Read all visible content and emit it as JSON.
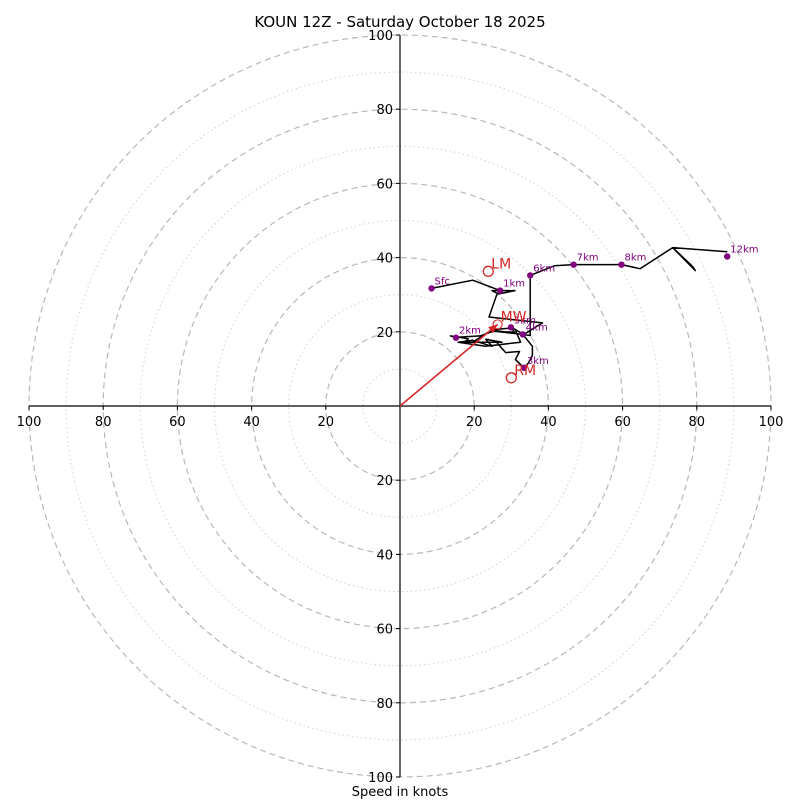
{
  "chart_data": {
    "type": "hodograph",
    "title": "KOUN 12Z - Saturday October 18 2025",
    "xlabel": "Speed in knots",
    "ring_max": 100,
    "major_ring_step": 20,
    "minor_ring_step": 10,
    "tick_labels": [
      "20",
      "40",
      "60",
      "80",
      "100"
    ],
    "trace_color": "#000000",
    "height_color": "#800080",
    "motion_color": "#d62728",
    "trace": [
      [
        8.5,
        31.7
      ],
      [
        19.6,
        33.9
      ],
      [
        27,
        31.1
      ],
      [
        31,
        31.1
      ],
      [
        26.5,
        30.2
      ],
      [
        24.8,
        31.1
      ],
      [
        27,
        31.1
      ],
      [
        26,
        29.8
      ],
      [
        24,
        24
      ],
      [
        38.4,
        22.4
      ],
      [
        33.4,
        19.3
      ],
      [
        29.9,
        21.2
      ],
      [
        30.8,
        19.9
      ],
      [
        24.2,
        20.2
      ],
      [
        19.6,
        17.2
      ],
      [
        26,
        17.2
      ],
      [
        28.5,
        14.4
      ],
      [
        32.2,
        14.7
      ],
      [
        31.1,
        12.5
      ],
      [
        33.4,
        10.3
      ],
      [
        34.6,
        11.6
      ],
      [
        35.7,
        13.6
      ],
      [
        35.7,
        16.1
      ],
      [
        33.1,
        19.3
      ],
      [
        25.3,
        20.2
      ],
      [
        21.6,
        18.9
      ],
      [
        14.8,
        18.5
      ],
      [
        13.6,
        18.9
      ],
      [
        18.4,
        18.1
      ],
      [
        17.4,
        17.2
      ],
      [
        27.5,
        17.2
      ],
      [
        23.1,
        18
      ],
      [
        24.8,
        16.1
      ],
      [
        19.6,
        17.7
      ],
      [
        15.7,
        17.2
      ],
      [
        23.1,
        16.1
      ],
      [
        32.5,
        17.2
      ],
      [
        31,
        20.7
      ],
      [
        30,
        21
      ],
      [
        24.4,
        20.5
      ],
      [
        35.1,
        19
      ],
      [
        35.1,
        35.2
      ],
      [
        41.6,
        37.8
      ],
      [
        46.8,
        38.1
      ],
      [
        59.7,
        38.1
      ],
      [
        64.7,
        37
      ],
      [
        73.5,
        42.7
      ],
      [
        79.6,
        36.5
      ],
      [
        78.9,
        37.6
      ],
      [
        73.5,
        42.7
      ],
      [
        88.2,
        41.6
      ]
    ],
    "heights": [
      {
        "label": "Sfc",
        "u": 8.5,
        "v": 31.7
      },
      {
        "label": "1km",
        "u": 27.0,
        "v": 31.1
      },
      {
        "label": "2km",
        "u": 15.1,
        "v": 18.4
      },
      {
        "label": "3km",
        "u": 33.4,
        "v": 10.3
      },
      {
        "label": "4km",
        "u": 33.1,
        "v": 19.3
      },
      {
        "label": "5km",
        "u": 29.9,
        "v": 21.2
      },
      {
        "label": "6km",
        "u": 35.1,
        "v": 35.2
      },
      {
        "label": "7km",
        "u": 46.8,
        "v": 38.1
      },
      {
        "label": "8km",
        "u": 59.7,
        "v": 38.1
      },
      {
        "label": "12km",
        "u": 88.2,
        "v": 40.3
      }
    ],
    "storm_motion": [
      {
        "label": "LM",
        "u": 23.8,
        "v": 36.3
      },
      {
        "label": "RM",
        "u": 30.0,
        "v": 7.6
      },
      {
        "label": "MW",
        "u": 26.3,
        "v": 22.0
      }
    ],
    "mean_wind_arrow": {
      "u": 26.3,
      "v": 22.0
    }
  }
}
